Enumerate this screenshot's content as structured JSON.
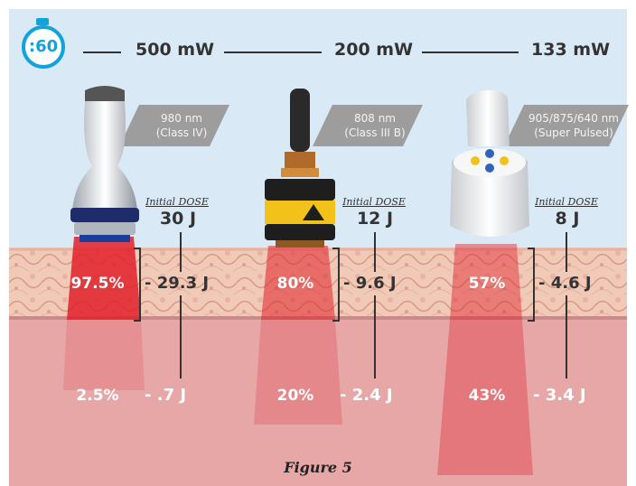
{
  "timer": {
    "label": ":60"
  },
  "devices": [
    {
      "power": "500 mW",
      "wavelength": "980 nm",
      "class": "(Class IV)",
      "dose_label": "Initial DOSE",
      "dose": "30 J",
      "surface_pct": "97.5%",
      "surface_joules": "29.3 J",
      "deep_pct": "2.5%",
      "deep_joules": ".7 J"
    },
    {
      "power": "200 mW",
      "wavelength": "808 nm",
      "class": "(Class III B)",
      "dose_label": "Initial DOSE",
      "dose": "12 J",
      "surface_pct": "80%",
      "surface_joules": "9.6 J",
      "deep_pct": "20%",
      "deep_joules": "2.4 J"
    },
    {
      "power": "133 mW",
      "wavelength": "905/875/640 nm",
      "class": "(Super Pulsed)",
      "dose_label": "Initial DOSE",
      "dose": "8 J",
      "surface_pct": "57%",
      "surface_joules": "4.6 J",
      "deep_pct": "43%",
      "deep_joules": "3.4 J"
    }
  ],
  "caption": "Figure 5",
  "colors": {
    "accent": "#12a2dc",
    "beam": "#e0202a",
    "tag": "#9d9d9d",
    "laser_yellow": "#f2c21a"
  }
}
